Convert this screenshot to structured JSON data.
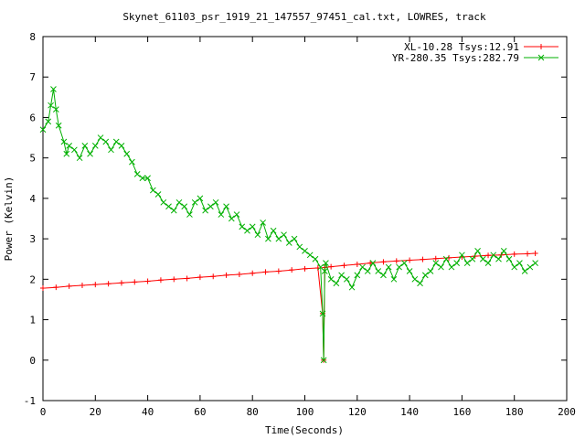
{
  "chart_data": {
    "type": "line",
    "title": "Skynet_61103_psr_1919_21_147557_97451_cal.txt, LOWRES, track",
    "xlabel": "Time(Seconds)",
    "ylabel": "Power (Kelvin)",
    "xlim": [
      0,
      200
    ],
    "ylim": [
      -1,
      8
    ],
    "xticks": [
      0,
      20,
      40,
      60,
      80,
      100,
      120,
      140,
      160,
      180,
      200
    ],
    "yticks": [
      -1,
      0,
      1,
      2,
      3,
      4,
      5,
      6,
      7,
      8
    ],
    "grid": false,
    "legend_position": "top-right",
    "series": [
      {
        "name": "XL-10.28 Tsys:12.91",
        "color": "#ff0000",
        "marker": "plus",
        "x": [
          0,
          5,
          10,
          15,
          20,
          25,
          30,
          35,
          40,
          45,
          50,
          55,
          60,
          65,
          70,
          75,
          80,
          85,
          90,
          95,
          100,
          105,
          106.8,
          107.2,
          107.6,
          110,
          115,
          120,
          125,
          130,
          135,
          140,
          145,
          150,
          155,
          160,
          165,
          170,
          175,
          180,
          185,
          188
        ],
        "y": [
          1.78,
          1.8,
          1.83,
          1.85,
          1.87,
          1.89,
          1.91,
          1.93,
          1.95,
          1.98,
          2.0,
          2.02,
          2.05,
          2.07,
          2.1,
          2.12,
          2.15,
          2.18,
          2.2,
          2.23,
          2.26,
          2.28,
          1.15,
          0.0,
          2.29,
          2.31,
          2.34,
          2.37,
          2.4,
          2.43,
          2.45,
          2.47,
          2.49,
          2.51,
          2.53,
          2.55,
          2.57,
          2.59,
          2.6,
          2.62,
          2.63,
          2.64
        ]
      },
      {
        "name": "YR-280.35 Tsys:282.79",
        "color": "#00b000",
        "marker": "cross",
        "x": [
          0,
          2,
          3,
          4,
          5,
          6,
          8,
          9,
          10,
          12,
          14,
          16,
          18,
          20,
          22,
          24,
          26,
          28,
          30,
          32,
          34,
          36,
          38,
          40,
          42,
          44,
          46,
          48,
          50,
          52,
          54,
          56,
          58,
          60,
          62,
          64,
          66,
          68,
          70,
          72,
          74,
          76,
          78,
          80,
          82,
          84,
          86,
          88,
          90,
          92,
          94,
          96,
          98,
          100,
          102,
          104,
          106,
          106.8,
          107.2,
          107.6,
          108,
          110,
          112,
          114,
          116,
          118,
          120,
          122,
          124,
          126,
          128,
          130,
          132,
          134,
          136,
          138,
          140,
          142,
          144,
          146,
          148,
          150,
          152,
          154,
          156,
          158,
          160,
          162,
          164,
          166,
          168,
          170,
          172,
          174,
          176,
          178,
          180,
          182,
          184,
          186,
          188
        ],
        "y": [
          5.7,
          5.9,
          6.3,
          6.7,
          6.2,
          5.8,
          5.4,
          5.1,
          5.3,
          5.2,
          5.0,
          5.3,
          5.1,
          5.3,
          5.5,
          5.4,
          5.2,
          5.4,
          5.3,
          5.1,
          4.9,
          4.6,
          4.5,
          4.5,
          4.2,
          4.1,
          3.9,
          3.8,
          3.7,
          3.9,
          3.8,
          3.6,
          3.9,
          4.0,
          3.7,
          3.8,
          3.9,
          3.6,
          3.8,
          3.5,
          3.6,
          3.3,
          3.2,
          3.3,
          3.1,
          3.4,
          3.0,
          3.2,
          3.0,
          3.1,
          2.9,
          3.0,
          2.8,
          2.7,
          2.6,
          2.5,
          2.3,
          1.15,
          0.0,
          2.2,
          2.4,
          2.0,
          1.9,
          2.1,
          2.0,
          1.8,
          2.1,
          2.3,
          2.2,
          2.4,
          2.2,
          2.1,
          2.3,
          2.0,
          2.3,
          2.4,
          2.2,
          2.0,
          1.9,
          2.1,
          2.2,
          2.4,
          2.3,
          2.5,
          2.3,
          2.4,
          2.6,
          2.4,
          2.5,
          2.7,
          2.5,
          2.4,
          2.6,
          2.5,
          2.7,
          2.5,
          2.3,
          2.4,
          2.2,
          2.3,
          2.4
        ]
      }
    ]
  }
}
